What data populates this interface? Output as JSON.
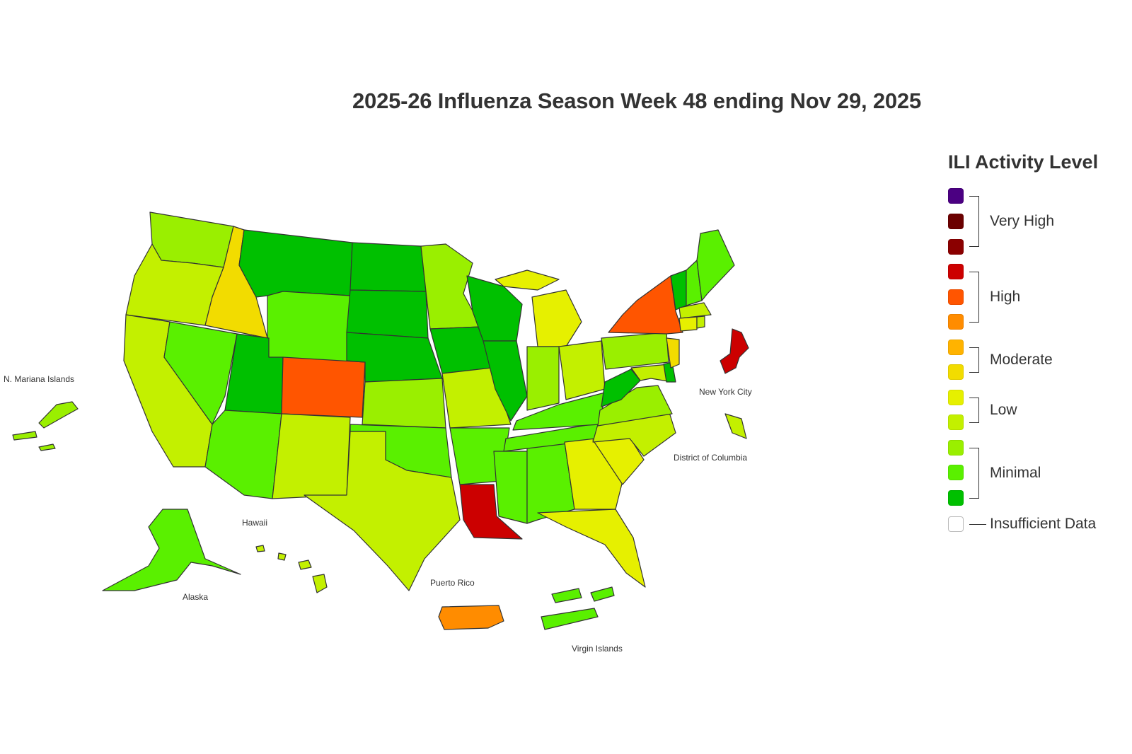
{
  "title": "2025-26 Influenza Season Week 48 ending Nov 29, 2025",
  "legend": {
    "title": "ILI Activity Level",
    "levels": [
      {
        "color": "#4b0082"
      },
      {
        "color": "#6b0000"
      },
      {
        "color": "#8b0000"
      },
      {
        "color": "#cc0000"
      },
      {
        "color": "#ff5500"
      },
      {
        "color": "#ff8c00"
      },
      {
        "color": "#ffb300"
      },
      {
        "color": "#f2dc00"
      },
      {
        "color": "#e6f000"
      },
      {
        "color": "#c3f000"
      },
      {
        "color": "#9aef00"
      },
      {
        "color": "#5af000"
      },
      {
        "color": "#00c000"
      },
      {
        "color": "#ffffff"
      }
    ],
    "groups": [
      {
        "label": "Very High"
      },
      {
        "label": "High"
      },
      {
        "label": "Moderate"
      },
      {
        "label": "Low"
      },
      {
        "label": "Minimal"
      },
      {
        "label": "Insufficient Data"
      }
    ]
  },
  "territory_labels": {
    "mariana": "N. Mariana Islands",
    "nyc": "New York City",
    "dc": "District of Columbia",
    "hawaii": "Hawaii",
    "alaska": "Alaska",
    "puerto_rico": "Puerto Rico",
    "virgin_islands": "Virgin Islands"
  }
}
